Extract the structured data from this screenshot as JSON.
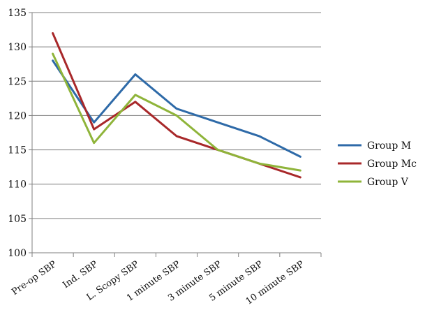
{
  "chart_data": {
    "type": "line",
    "title": "",
    "xlabel": "",
    "ylabel": "",
    "categories": [
      "Pre-op SBP",
      "Ind. SBP",
      "L. Scopy SBP",
      "1 minute SBP",
      "3 minute SBP",
      "5 minute SBP",
      "10 minute SBP"
    ],
    "ylim": [
      100,
      135
    ],
    "yticks": [
      100,
      105,
      110,
      115,
      120,
      125,
      130,
      135
    ],
    "grid": true,
    "legend_position": "right",
    "series": [
      {
        "name": "Group M",
        "color": "#2e6aa8",
        "values": [
          128,
          119,
          126,
          121,
          119,
          117,
          114
        ]
      },
      {
        "name": "Group Mc",
        "color": "#a8282a",
        "values": [
          132,
          118,
          122,
          117,
          115,
          113,
          111
        ]
      },
      {
        "name": "Group V",
        "color": "#8fb43a",
        "values": [
          129,
          116,
          123,
          120,
          115,
          113,
          112
        ]
      }
    ]
  }
}
